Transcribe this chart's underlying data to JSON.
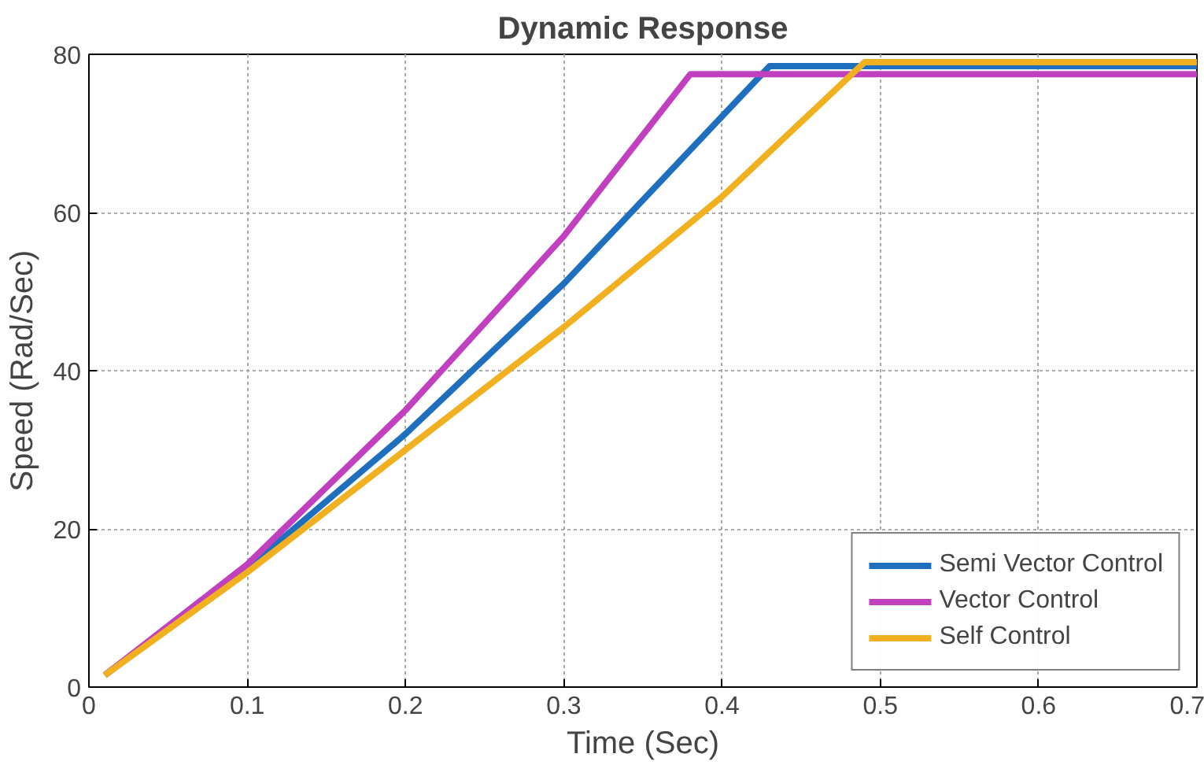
{
  "chart_data": {
    "type": "line",
    "title": "Dynamic Response",
    "xlabel": "Time (Sec)",
    "ylabel": "Speed (Rad/Sec)",
    "xlim": [
      0,
      0.7
    ],
    "ylim": [
      0,
      80
    ],
    "xticks": [
      0,
      0.1,
      0.2,
      0.3,
      0.4,
      0.5,
      0.6,
      0.7
    ],
    "yticks": [
      0,
      20,
      40,
      60,
      80
    ],
    "grid": true,
    "legend": "bottom right",
    "line_style": "solid",
    "series": [
      {
        "name": "Semi Vector Control",
        "color": "#1f6fbf",
        "x": [
          0.01,
          0.1,
          0.2,
          0.3,
          0.43,
          0.7
        ],
        "values": [
          1.5,
          15,
          32,
          51,
          78.5,
          78.5
        ]
      },
      {
        "name": "Vector Control",
        "color": "#c040c0",
        "x": [
          0.01,
          0.1,
          0.2,
          0.3,
          0.38,
          0.7
        ],
        "values": [
          1.5,
          15.5,
          35,
          57,
          77.5,
          77.5
        ]
      },
      {
        "name": "Self Control",
        "color": "#f0b020",
        "x": [
          0.01,
          0.1,
          0.2,
          0.3,
          0.4,
          0.49,
          0.7
        ],
        "values": [
          1.5,
          14.5,
          30,
          45.5,
          62,
          79,
          79
        ]
      }
    ]
  }
}
